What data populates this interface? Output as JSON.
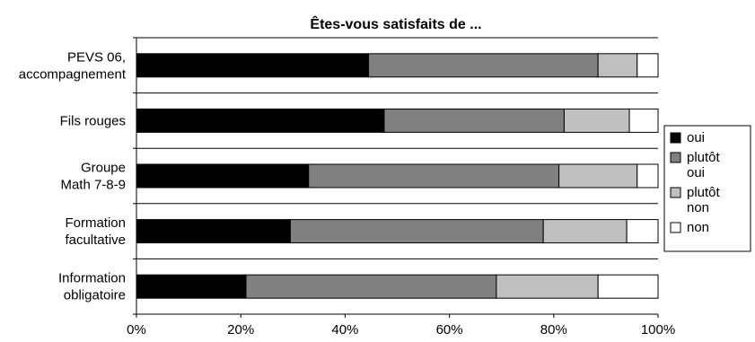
{
  "chart_data": {
    "type": "bar",
    "orientation": "horizontal",
    "stacked": true,
    "percent": true,
    "title": "Êtes-vous satisfaits de ...",
    "xlabel": "",
    "ylabel": "",
    "xlim": [
      0,
      100
    ],
    "x_ticks": [
      "0%",
      "20%",
      "40%",
      "60%",
      "80%",
      "100%"
    ],
    "categories": [
      [
        "PEVS 06,",
        "accompagnement"
      ],
      [
        "Fils rouges"
      ],
      [
        "Groupe",
        "Math 7-8-9"
      ],
      [
        "Formation",
        "facultative"
      ],
      [
        "Information",
        "obligatoire"
      ]
    ],
    "series": [
      {
        "name": [
          "oui"
        ],
        "color": "#000000",
        "values": [
          44.5,
          47.5,
          33,
          29.5,
          21
        ]
      },
      {
        "name": [
          "plutôt",
          "oui"
        ],
        "color": "#808080",
        "values": [
          44,
          34.5,
          48,
          48.5,
          48
        ]
      },
      {
        "name": [
          "plutôt",
          "non"
        ],
        "color": "#c0c0c0",
        "values": [
          7.5,
          12.5,
          15,
          16,
          19.5
        ]
      },
      {
        "name": [
          "non"
        ],
        "color": "#ffffff",
        "values": [
          4,
          5.5,
          4,
          6,
          11.5
        ]
      }
    ],
    "grid": "horizontal category separators",
    "legend": "right"
  }
}
